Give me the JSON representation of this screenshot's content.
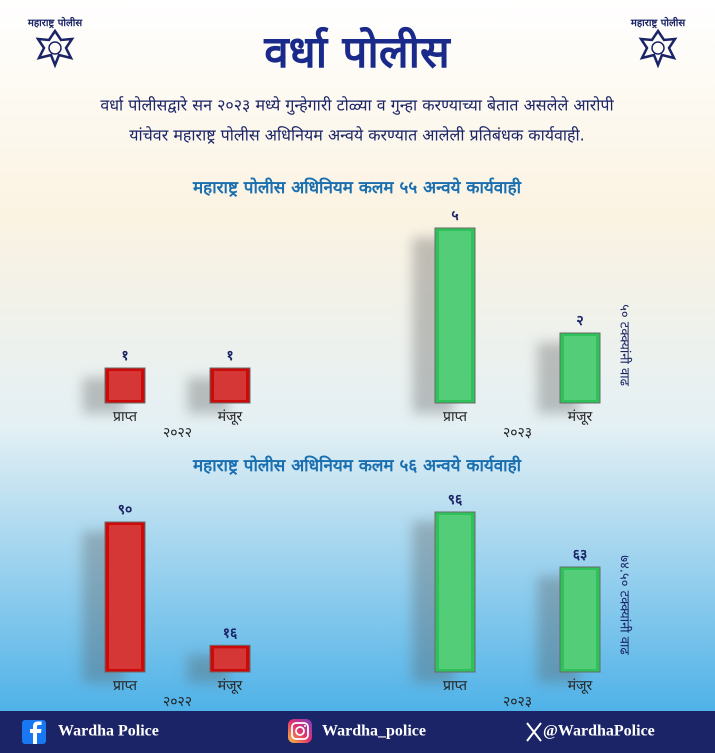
{
  "header": {
    "title": "वर्धा पोलीस",
    "logo_text": "महाराष्ट्र पोलीस",
    "subtitle": [
      "वर्धा पोलीसद्वारे सन २०२३ मध्ये गुन्हेगारी टोळ्या व गुन्हा करण्याच्या बेतात असलेले आरोपी",
      "यांचेवर महाराष्ट्र पोलीस अधिनियम अन्वये करण्यात आलेली प्रतिबंधक कार्यवाही."
    ]
  },
  "chart_data": [
    {
      "type": "bar",
      "title": "महाराष्ट्र पोलीस अधिनियम कलम ५५ अन्वये कार्यवाही",
      "categories": [
        "प्राप्त",
        "मंजूर",
        "प्राप्त",
        "मंजूर"
      ],
      "groups": [
        "२०२२",
        "२०२३"
      ],
      "values": [
        1,
        1,
        5,
        2
      ],
      "value_labels": [
        "१",
        "१",
        "५",
        "२"
      ],
      "colors": [
        "#cc0a0a",
        "#cc0a0a",
        "#2ec35a",
        "#2ec35a"
      ],
      "annotation": "५० टक्क्यांनी वाढ"
    },
    {
      "type": "bar",
      "title": "महाराष्ट्र पोलीस अधिनियम कलम ५६ अन्वये कार्यवाही",
      "categories": [
        "प्राप्त",
        "मंजूर",
        "प्राप्त",
        "मंजूर"
      ],
      "groups": [
        "२०२२",
        "२०२३"
      ],
      "values": [
        90,
        16,
        96,
        63
      ],
      "value_labels": [
        "९०",
        "१६",
        "९६",
        "६३"
      ],
      "colors": [
        "#cc0a0a",
        "#cc0a0a",
        "#2ec35a",
        "#2ec35a"
      ],
      "annotation": "७४.५० टक्क्यांनी वाढ"
    }
  ],
  "footer": {
    "facebook": "Wardha Police",
    "instagram": "Wardha_police",
    "x": "@WardhaPolice"
  }
}
